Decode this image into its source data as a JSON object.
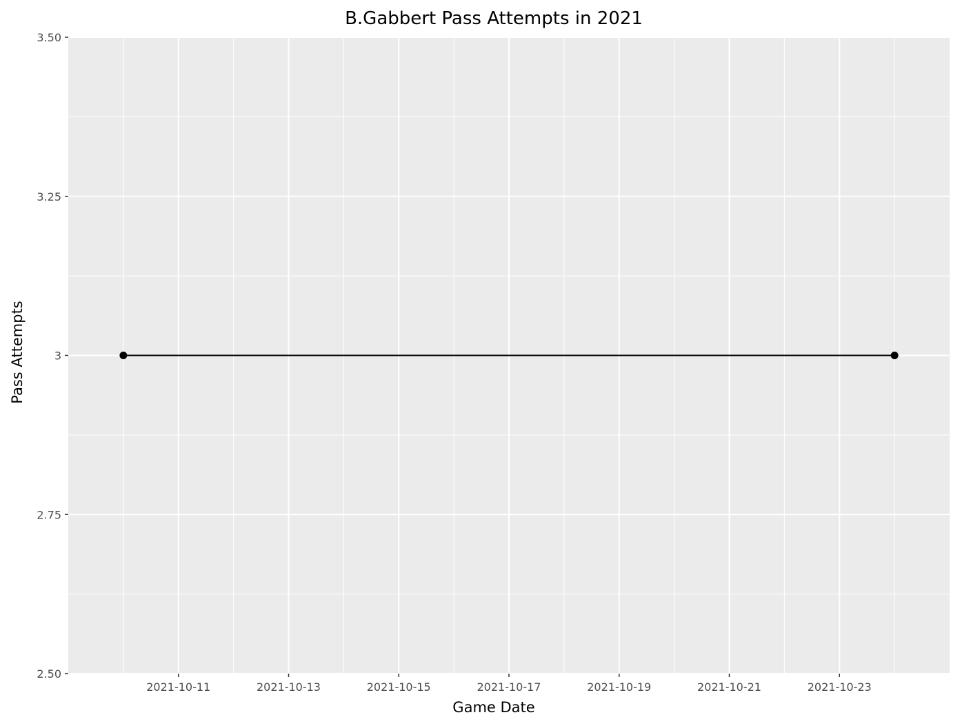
{
  "chart_data": {
    "type": "line",
    "title": "B.Gabbert Pass Attempts in 2021",
    "xlabel": "Game Date",
    "ylabel": "Pass Attempts",
    "x": [
      "2021-10-10",
      "2021-10-24"
    ],
    "series": [
      {
        "values": [
          3,
          3
        ]
      }
    ],
    "xlim": [
      "2021-10-09",
      "2021-10-25"
    ],
    "ylim": [
      2.5,
      3.5
    ],
    "x_ticks": [
      "2021-10-11",
      "2021-10-13",
      "2021-10-15",
      "2021-10-17",
      "2021-10-19",
      "2021-10-21",
      "2021-10-23"
    ],
    "y_ticks": [
      {
        "value": 2.5,
        "label": "2.50"
      },
      {
        "value": 2.75,
        "label": "2.75"
      },
      {
        "value": 3,
        "label": "3"
      },
      {
        "value": 3.25,
        "label": "3.25"
      },
      {
        "value": 3.5,
        "label": "3.50"
      }
    ],
    "grid": true,
    "legend": "none",
    "colors": {
      "panel_background": "#ebebeb",
      "grid_major": "#ffffff",
      "line": "#000000",
      "point": "#000000"
    }
  }
}
